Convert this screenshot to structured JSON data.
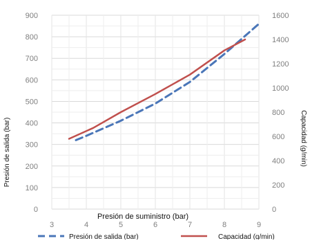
{
  "chart_data": {
    "type": "line",
    "xlabel": "Presión de suministro (bar)",
    "ylabel": "Presión de salida (bar)",
    "y2label": "Capacidad (g/min)",
    "xlim": [
      3,
      9
    ],
    "ylim": [
      0,
      900
    ],
    "y2lim": [
      0,
      1600
    ],
    "x_ticks": [
      3,
      4,
      5,
      6,
      7,
      8,
      9
    ],
    "y_ticks": [
      0,
      100,
      200,
      300,
      400,
      500,
      600,
      700,
      800,
      900
    ],
    "y2_ticks": [
      0,
      200,
      400,
      600,
      800,
      1000,
      1200,
      1400,
      1600
    ],
    "grid": true,
    "legend_position": "bottom",
    "series": [
      {
        "name": "Presión de salida (bar)",
        "axis": "left",
        "style": "dashed",
        "color": "#4a76b8",
        "x": [
          3.7,
          4.0,
          5.0,
          6.0,
          7.0,
          8.0,
          9.0
        ],
        "y": [
          320,
          340,
          410,
          490,
          590,
          720,
          860
        ]
      },
      {
        "name": "Capacidad (g/min)",
        "axis": "right",
        "style": "solid",
        "color": "#c0504d",
        "x": [
          3.5,
          4.2,
          5.0,
          6.0,
          7.0,
          7.5,
          8.0,
          8.6
        ],
        "y": [
          580,
          670,
          800,
          950,
          1110,
          1210,
          1310,
          1400
        ]
      }
    ]
  }
}
